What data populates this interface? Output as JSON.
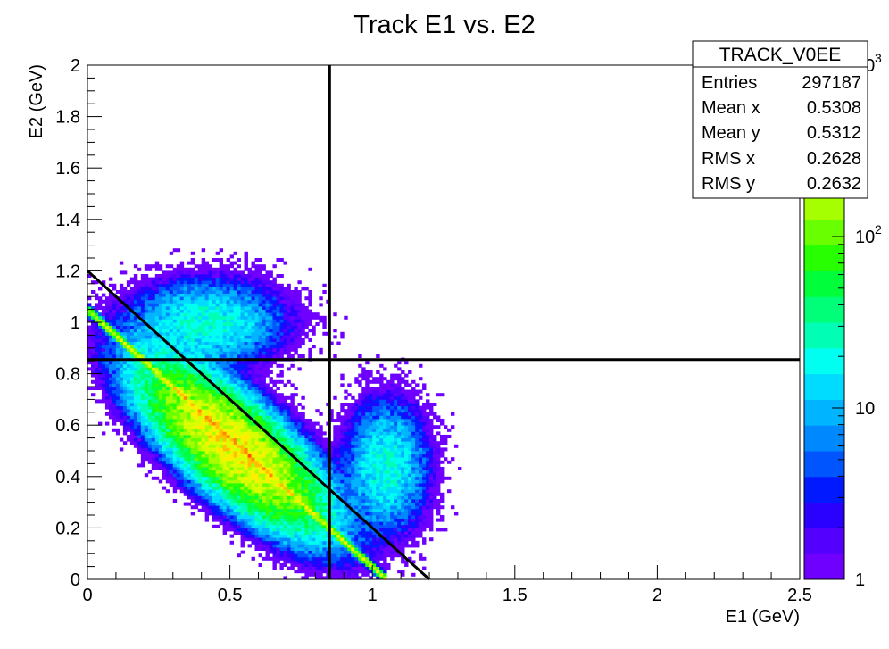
{
  "chart_data": {
    "type": "heatmap",
    "title": "Track E1 vs. E2",
    "xlabel": "E1 (GeV)",
    "ylabel": "E2 (GeV)",
    "xlim": [
      0,
      2.5
    ],
    "ylim": [
      0,
      2
    ],
    "x_ticks": [
      {
        "v": 0,
        "label": "0"
      },
      {
        "v": 0.5,
        "label": "0.5"
      },
      {
        "v": 1,
        "label": "1"
      },
      {
        "v": 1.5,
        "label": "1.5"
      },
      {
        "v": 2,
        "label": "2"
      },
      {
        "v": 2.5,
        "label": "2.5"
      }
    ],
    "y_ticks": [
      {
        "v": 0,
        "label": "0"
      },
      {
        "v": 0.2,
        "label": "0.2"
      },
      {
        "v": 0.4,
        "label": "0.4"
      },
      {
        "v": 0.6,
        "label": "0.6"
      },
      {
        "v": 0.8,
        "label": "0.8"
      },
      {
        "v": 1,
        "label": "1"
      },
      {
        "v": 1.2,
        "label": "1.2"
      },
      {
        "v": 1.4,
        "label": "1.4"
      },
      {
        "v": 1.6,
        "label": "1.6"
      },
      {
        "v": 1.8,
        "label": "1.8"
      },
      {
        "v": 2,
        "label": "2"
      }
    ],
    "z_scale": "log",
    "z_range": [
      1,
      1000
    ],
    "z_ticks": [
      {
        "v": 1,
        "label": "1",
        "exp": ""
      },
      {
        "v": 10,
        "label": "10",
        "exp": ""
      },
      {
        "v": 100,
        "label": "10",
        "exp": "2"
      },
      {
        "v": 1000,
        "label": "10",
        "exp": "3"
      }
    ],
    "palette": [
      "#6f00ff",
      "#5300ff",
      "#2a00ff",
      "#0019ff",
      "#0055ff",
      "#0089ff",
      "#00b4ff",
      "#00dcff",
      "#00fff0",
      "#00ffb5",
      "#00ff78",
      "#00ff3a",
      "#28ff00",
      "#6aff00",
      "#a5ff00",
      "#d8ff00",
      "#ffee00",
      "#ffbf00",
      "#ff8800",
      "#ff4a00"
    ],
    "stats_box": {
      "title": "TRACK_V0EE",
      "rows": [
        {
          "label": "Entries",
          "value": "297187"
        },
        {
          "label": "Mean x",
          "value": "0.5308"
        },
        {
          "label": "Mean y",
          "value": "0.5312"
        },
        {
          "label": "RMS x",
          "value": "0.2628"
        },
        {
          "label": "RMS y",
          "value": "0.2632"
        }
      ]
    },
    "cut_lines": [
      {
        "name": "vertical-cut",
        "x1": 0.85,
        "y1": 0,
        "x2": 0.85,
        "y2": 2
      },
      {
        "name": "horizontal-cut",
        "x1": 0,
        "y1": 0.855,
        "x2": 2.5,
        "y2": 0.855
      },
      {
        "name": "diagonal-cut",
        "x1": 0,
        "y1": 1.2,
        "x2": 1.2,
        "y2": 0
      }
    ],
    "clusters": [
      {
        "name": "main-diagonal-band",
        "shape": "band",
        "sum": 1.05,
        "half_width": 0.006,
        "x_range": [
          0.005,
          1.05
        ],
        "peak": 280
      },
      {
        "name": "central-blob",
        "cx": 0.51,
        "cy": 0.52,
        "sd_major": 0.2,
        "sd_minor": 0.075,
        "angle_deg": -45,
        "peak": 300
      },
      {
        "name": "upper-left-blob",
        "cx": 0.42,
        "cy": 1.0,
        "sd_major": 0.14,
        "sd_minor": 0.085,
        "angle_deg": 0,
        "peak": 22
      },
      {
        "name": "right-blob",
        "cx": 1.05,
        "cy": 0.44,
        "sd_major": 0.13,
        "sd_minor": 0.075,
        "angle_deg": 90,
        "peak": 22
      }
    ],
    "bin_size": 0.0125
  }
}
